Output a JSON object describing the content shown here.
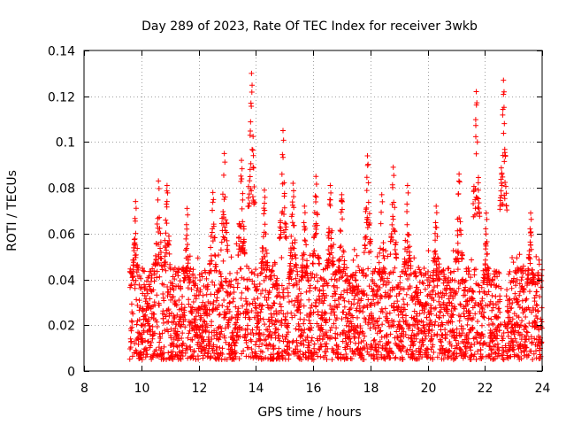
{
  "chart_data": {
    "type": "scatter",
    "title": "Day 289 of 2023, Rate Of TEC Index for receiver 3wkb",
    "xlabel": "GPS time / hours",
    "ylabel": "ROTI / TECUs",
    "xlim": [
      8,
      24
    ],
    "ylim": [
      0,
      0.14
    ],
    "xticks": [
      8,
      10,
      12,
      14,
      16,
      18,
      20,
      22,
      24
    ],
    "xtick_labels": [
      "8",
      "10",
      "12",
      "14",
      "16",
      "18",
      "20",
      "22",
      "24"
    ],
    "yticks": [
      0,
      0.02,
      0.04,
      0.06,
      0.08,
      0.1,
      0.12,
      0.14
    ],
    "ytick_labels": [
      "0",
      "0.02",
      "0.04",
      "0.06",
      "0.08",
      "0.1",
      "0.12",
      "0.14"
    ],
    "grid": true,
    "marker": "+",
    "series": [
      {
        "name": "ROTI",
        "color": "#ff0000",
        "generator": {
          "x_start": 9.6,
          "x_end": 24.0,
          "step": 0.0042,
          "typical_range": [
            0.005,
            0.045
          ],
          "spikes": [
            {
              "x": 9.8,
              "max": 0.074
            },
            {
              "x": 10.6,
              "max": 0.083
            },
            {
              "x": 10.9,
              "max": 0.081
            },
            {
              "x": 11.6,
              "max": 0.071
            },
            {
              "x": 12.5,
              "max": 0.078
            },
            {
              "x": 12.9,
              "max": 0.095
            },
            {
              "x": 13.5,
              "max": 0.092
            },
            {
              "x": 13.85,
              "max": 0.13
            },
            {
              "x": 14.3,
              "max": 0.079
            },
            {
              "x": 14.95,
              "max": 0.105
            },
            {
              "x": 15.3,
              "max": 0.082
            },
            {
              "x": 15.7,
              "max": 0.072
            },
            {
              "x": 16.1,
              "max": 0.085
            },
            {
              "x": 16.6,
              "max": 0.081
            },
            {
              "x": 17.0,
              "max": 0.077
            },
            {
              "x": 17.9,
              "max": 0.094
            },
            {
              "x": 18.4,
              "max": 0.077
            },
            {
              "x": 18.8,
              "max": 0.089
            },
            {
              "x": 19.3,
              "max": 0.081
            },
            {
              "x": 20.3,
              "max": 0.072
            },
            {
              "x": 21.1,
              "max": 0.086
            },
            {
              "x": 21.7,
              "max": 0.122
            },
            {
              "x": 22.05,
              "max": 0.069
            },
            {
              "x": 22.65,
              "max": 0.127
            },
            {
              "x": 23.6,
              "max": 0.069
            }
          ]
        }
      }
    ]
  }
}
